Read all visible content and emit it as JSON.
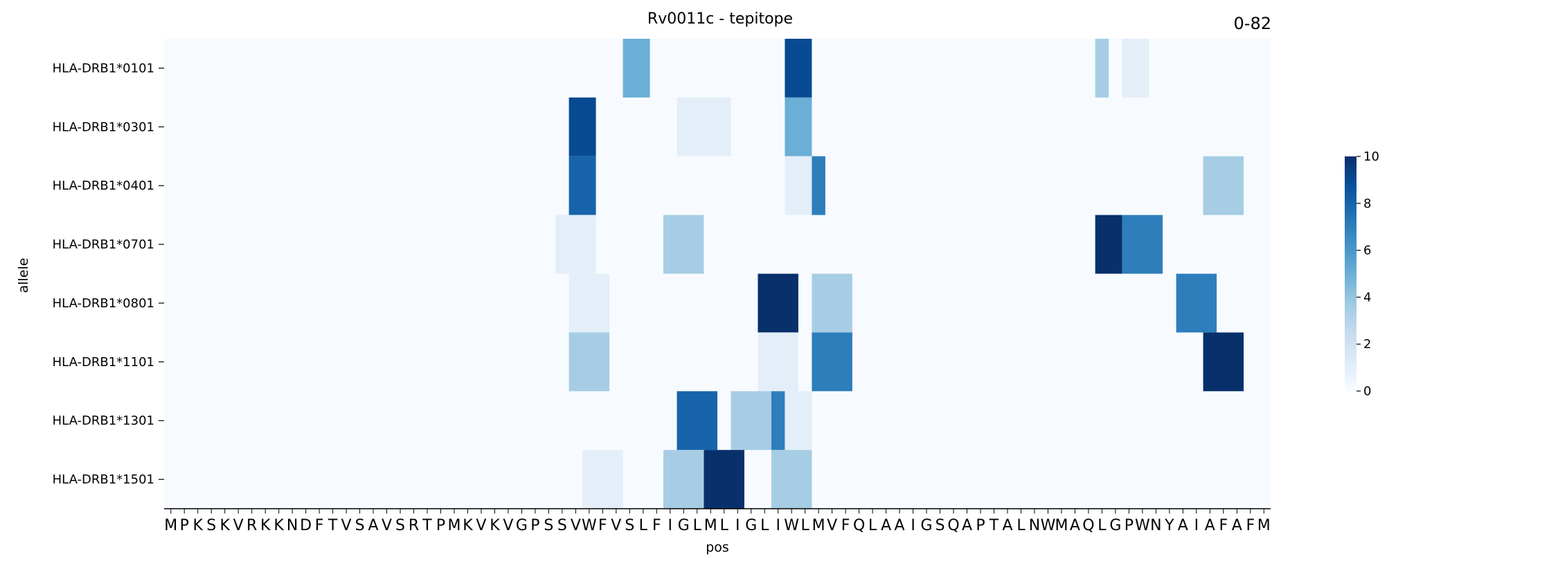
{
  "chart_data": {
    "type": "heatmap",
    "title": "Rv0011c - tepitope",
    "range_label": "0-82",
    "xlabel": "pos",
    "ylabel": "allele",
    "sequence": "MPKSKVRKKNDFTVSAVSRTPMKVKVGPSSVWFVSLFIGLMLIGLIWLMVFQLAAIGSQAPTALNWMAQLGPWNYAIAFAFM",
    "alleles": [
      "HLA-DRB1*0101",
      "HLA-DRB1*0301",
      "HLA-DRB1*0401",
      "HLA-DRB1*0701",
      "HLA-DRB1*0801",
      "HLA-DRB1*1101",
      "HLA-DRB1*1301",
      "HLA-DRB1*1501"
    ],
    "colorbar": {
      "min": 0,
      "max": 10,
      "ticks": [
        0,
        2,
        4,
        6,
        8,
        10
      ],
      "colormap": "Blues"
    },
    "cells": [
      {
        "allele": 0,
        "from": 34,
        "to": 36,
        "value": 5.0
      },
      {
        "allele": 0,
        "from": 46,
        "to": 48,
        "value": 9.0
      },
      {
        "allele": 0,
        "from": 69,
        "to": 70,
        "value": 3.5
      },
      {
        "allele": 0,
        "from": 71,
        "to": 73,
        "value": 1.0
      },
      {
        "allele": 1,
        "from": 30,
        "to": 32,
        "value": 9.0
      },
      {
        "allele": 1,
        "from": 38,
        "to": 42,
        "value": 1.0
      },
      {
        "allele": 1,
        "from": 46,
        "to": 48,
        "value": 5.0
      },
      {
        "allele": 2,
        "from": 30,
        "to": 32,
        "value": 8.0
      },
      {
        "allele": 2,
        "from": 46,
        "to": 48,
        "value": 1.0
      },
      {
        "allele": 2,
        "from": 48,
        "to": 49,
        "value": 7.0
      },
      {
        "allele": 2,
        "from": 77,
        "to": 80,
        "value": 3.5
      },
      {
        "allele": 3,
        "from": 29,
        "to": 32,
        "value": 1.0
      },
      {
        "allele": 3,
        "from": 37,
        "to": 40,
        "value": 3.5
      },
      {
        "allele": 3,
        "from": 69,
        "to": 71,
        "value": 10.0
      },
      {
        "allele": 3,
        "from": 71,
        "to": 74,
        "value": 7.0
      },
      {
        "allele": 4,
        "from": 30,
        "to": 33,
        "value": 1.0
      },
      {
        "allele": 4,
        "from": 44,
        "to": 47,
        "value": 10.0
      },
      {
        "allele": 4,
        "from": 48,
        "to": 51,
        "value": 3.5
      },
      {
        "allele": 4,
        "from": 75,
        "to": 78,
        "value": 7.0
      },
      {
        "allele": 5,
        "from": 30,
        "to": 33,
        "value": 3.5
      },
      {
        "allele": 5,
        "from": 44,
        "to": 47,
        "value": 1.0
      },
      {
        "allele": 5,
        "from": 48,
        "to": 51,
        "value": 7.0
      },
      {
        "allele": 5,
        "from": 77,
        "to": 80,
        "value": 10.0
      },
      {
        "allele": 6,
        "from": 38,
        "to": 41,
        "value": 8.0
      },
      {
        "allele": 6,
        "from": 42,
        "to": 45,
        "value": 3.5
      },
      {
        "allele": 6,
        "from": 45,
        "to": 46,
        "value": 7.0
      },
      {
        "allele": 6,
        "from": 46,
        "to": 48,
        "value": 1.0
      },
      {
        "allele": 7,
        "from": 31,
        "to": 34,
        "value": 1.0
      },
      {
        "allele": 7,
        "from": 37,
        "to": 40,
        "value": 3.5
      },
      {
        "allele": 7,
        "from": 40,
        "to": 43,
        "value": 10.0
      },
      {
        "allele": 7,
        "from": 45,
        "to": 48,
        "value": 3.5
      }
    ]
  }
}
